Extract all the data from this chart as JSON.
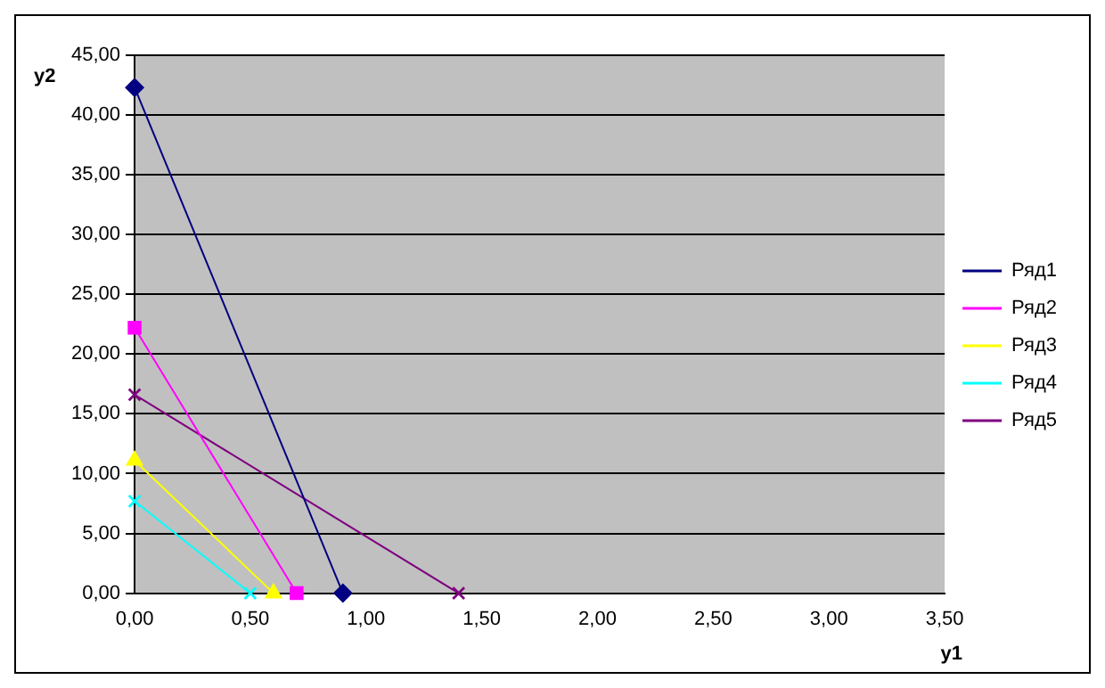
{
  "chart_data": {
    "type": "line",
    "xlabel": "y1",
    "ylabel": "y2",
    "xlim": [
      0,
      3.5
    ],
    "xticks": [
      {
        "value": 0,
        "label": "0,00"
      },
      {
        "value": 0.5,
        "label": "0,50"
      },
      {
        "value": 1,
        "label": "1,00"
      },
      {
        "value": 1.5,
        "label": "1,50"
      },
      {
        "value": 2,
        "label": "2,00"
      },
      {
        "value": 2.5,
        "label": "2,50"
      },
      {
        "value": 3,
        "label": "3,00"
      },
      {
        "value": 3.5,
        "label": "3,50"
      }
    ],
    "ylim": [
      0,
      45
    ],
    "yticks": [
      {
        "value": 0,
        "label": "0,00"
      },
      {
        "value": 5,
        "label": "5,00"
      },
      {
        "value": 10,
        "label": "10,00"
      },
      {
        "value": 15,
        "label": "15,00"
      },
      {
        "value": 20,
        "label": "20,00"
      },
      {
        "value": 25,
        "label": "25,00"
      },
      {
        "value": 30,
        "label": "30,00"
      },
      {
        "value": 35,
        "label": "35,00"
      },
      {
        "value": 40,
        "label": "40,00"
      },
      {
        "value": 45,
        "label": "45,00"
      }
    ],
    "grid": "y",
    "legend": "right",
    "line_style": "solid",
    "series": [
      {
        "name": "Ряд1",
        "color": "#000080",
        "marker": "diamond",
        "x": [
          0,
          0.9
        ],
        "values": [
          42.3,
          0
        ]
      },
      {
        "name": "Ряд2",
        "color": "#ff00ff",
        "marker": "square",
        "x": [
          0,
          0.7
        ],
        "values": [
          22.2,
          0
        ]
      },
      {
        "name": "Ряд3",
        "color": "#ffff00",
        "marker": "triangle",
        "x": [
          0,
          0.6
        ],
        "values": [
          11.1,
          0
        ]
      },
      {
        "name": "Ряд4",
        "color": "#00ffff",
        "marker": "cross",
        "x": [
          0,
          0.5
        ],
        "values": [
          7.7,
          0
        ]
      },
      {
        "name": "Ряд5",
        "color": "#800080",
        "marker": "cross",
        "x": [
          0,
          1.4
        ],
        "values": [
          16.6,
          0
        ]
      }
    ]
  }
}
